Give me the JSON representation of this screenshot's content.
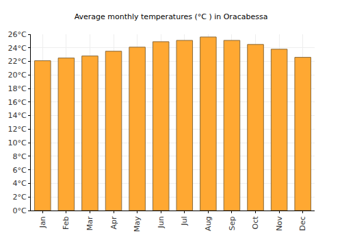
{
  "chart_data": {
    "type": "bar",
    "title": "Average monthly temperatures (°C ) in Oracabessa",
    "categories": [
      "Jan",
      "Feb",
      "Mar",
      "Apr",
      "May",
      "Jun",
      "Jul",
      "Aug",
      "Sep",
      "Oct",
      "Nov",
      "Dec"
    ],
    "values": [
      22.1,
      22.5,
      22.8,
      23.5,
      24.1,
      24.9,
      25.1,
      25.6,
      25.1,
      24.5,
      23.8,
      22.6
    ],
    "color": "#ffa832",
    "ylim": [
      0,
      26
    ],
    "yticks": [
      {
        "value": 0,
        "label": "0°C"
      },
      {
        "value": 2,
        "label": "2°C"
      },
      {
        "value": 4,
        "label": "4°C"
      },
      {
        "value": 6,
        "label": "6°C"
      },
      {
        "value": 8,
        "label": "8°C"
      },
      {
        "value": 10,
        "label": "10°C"
      },
      {
        "value": 12,
        "label": "12°C"
      },
      {
        "value": 14,
        "label": "14°C"
      },
      {
        "value": 16,
        "label": "16°C"
      },
      {
        "value": 18,
        "label": "18°C"
      },
      {
        "value": 20,
        "label": "20°C"
      },
      {
        "value": 22,
        "label": "22°C"
      },
      {
        "value": 24,
        "label": "24°C"
      },
      {
        "value": 26,
        "label": "26°C"
      }
    ],
    "grid": true
  }
}
